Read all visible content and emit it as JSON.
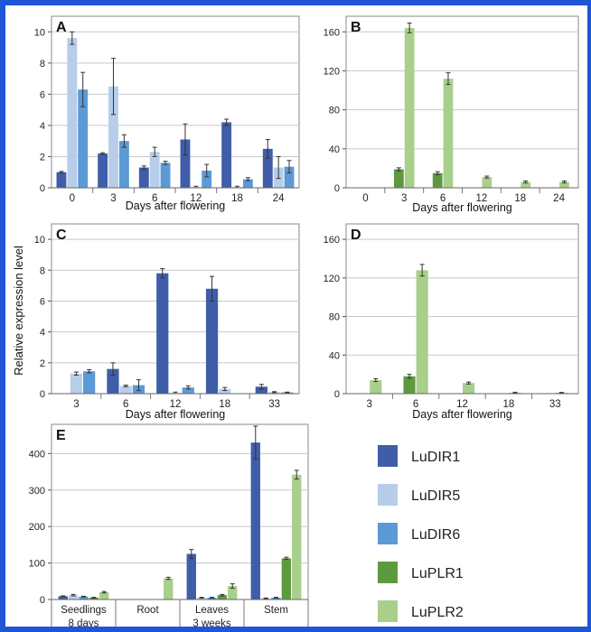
{
  "figure": {
    "ylabel_shared": "Relative expression level",
    "colors": {
      "LuDIR1": "#3f5da8",
      "LuDIR5": "#b7cde9",
      "LuDIR6": "#5b9ad6",
      "LuPLR1": "#5d9a3f",
      "LuPLR2": "#a9cf8c"
    }
  },
  "legend": {
    "items": [
      {
        "name": "LuDIR1",
        "color": "#3f5da8"
      },
      {
        "name": "LuDIR5",
        "color": "#b7cde9"
      },
      {
        "name": "LuDIR6",
        "color": "#5b9ad6"
      },
      {
        "name": "LuPLR1",
        "color": "#5d9a3f"
      },
      {
        "name": "LuPLR2",
        "color": "#a9cf8c"
      }
    ]
  },
  "chart_data": [
    {
      "panel": "A",
      "type": "bar",
      "xlabel": "Days after flowering",
      "categories": [
        "0",
        "3",
        "6",
        "12",
        "18",
        "24"
      ],
      "ylim": [
        0,
        11
      ],
      "yticks": [
        0,
        2,
        4,
        6,
        8,
        10
      ],
      "grid": true,
      "series": [
        {
          "name": "LuDIR1",
          "values": [
            1.0,
            2.2,
            1.3,
            3.1,
            4.2,
            2.5
          ],
          "err": [
            0.05,
            0.05,
            0.1,
            1.0,
            0.2,
            0.6
          ]
        },
        {
          "name": "LuDIR5",
          "values": [
            9.6,
            6.5,
            2.3,
            0.05,
            0.05,
            1.3
          ],
          "err": [
            0.4,
            1.8,
            0.3,
            0.05,
            0.05,
            0.7
          ]
        },
        {
          "name": "LuDIR6",
          "values": [
            6.3,
            3.0,
            1.6,
            1.1,
            0.55,
            1.35
          ],
          "err": [
            1.1,
            0.4,
            0.1,
            0.4,
            0.1,
            0.4
          ]
        }
      ]
    },
    {
      "panel": "B",
      "type": "bar",
      "xlabel": "Days after flowering",
      "categories": [
        "0",
        "3",
        "6",
        "12",
        "18",
        "24"
      ],
      "ylim": [
        0,
        176
      ],
      "yticks": [
        0,
        40,
        80,
        120,
        160
      ],
      "grid": true,
      "series": [
        {
          "name": "LuPLR1",
          "values": [
            0,
            19,
            15,
            0,
            0,
            0
          ],
          "err": [
            0,
            1.5,
            1.5,
            0,
            0,
            0
          ]
        },
        {
          "name": "LuPLR2",
          "values": [
            0,
            164,
            112,
            11,
            6,
            6
          ],
          "err": [
            0,
            5,
            6,
            1,
            1,
            1
          ]
        }
      ]
    },
    {
      "panel": "C",
      "type": "bar",
      "xlabel": "Days after flowering",
      "categories": [
        "3",
        "6",
        "12",
        "18",
        "33"
      ],
      "ylim": [
        0,
        11
      ],
      "yticks": [
        0,
        2,
        4,
        6,
        8,
        10
      ],
      "grid": true,
      "series": [
        {
          "name": "LuDIR1",
          "values": [
            0,
            1.6,
            7.8,
            6.8,
            0.45
          ],
          "err": [
            0,
            0.4,
            0.3,
            0.8,
            0.15
          ]
        },
        {
          "name": "LuDIR5",
          "values": [
            1.3,
            0.5,
            0.05,
            0.3,
            0.1
          ],
          "err": [
            0.1,
            0.05,
            0.05,
            0.1,
            0.03
          ]
        },
        {
          "name": "LuDIR6",
          "values": [
            1.45,
            0.55,
            0.4,
            0.0,
            0.08
          ],
          "err": [
            0.1,
            0.35,
            0.1,
            0,
            0.02
          ]
        }
      ]
    },
    {
      "panel": "D",
      "type": "bar",
      "xlabel": "Days after flowering",
      "categories": [
        "3",
        "6",
        "12",
        "18",
        "33"
      ],
      "ylim": [
        0,
        176
      ],
      "yticks": [
        0,
        40,
        80,
        120,
        160
      ],
      "grid": true,
      "series": [
        {
          "name": "LuPLR1",
          "values": [
            0,
            18,
            0,
            0,
            0
          ],
          "err": [
            0,
            2,
            0,
            0,
            0
          ]
        },
        {
          "name": "LuPLR2",
          "values": [
            14,
            128,
            11,
            1,
            1
          ],
          "err": [
            1.5,
            6,
            1,
            0.5,
            0.3
          ]
        }
      ]
    },
    {
      "panel": "E",
      "type": "bar",
      "categories": [
        "Seedlings",
        "Root",
        "Leaves",
        "Stem"
      ],
      "category_sublabels": [
        "8 days",
        "3 weeks"
      ],
      "ylim": [
        0,
        480
      ],
      "yticks": [
        0,
        100,
        200,
        300,
        400
      ],
      "grid": true,
      "series": [
        {
          "name": "LuDIR1",
          "values": [
            9,
            0,
            125,
            430
          ],
          "err": [
            1,
            0,
            12,
            45
          ]
        },
        {
          "name": "LuDIR5",
          "values": [
            12,
            0,
            5,
            3
          ],
          "err": [
            2,
            0,
            1,
            1
          ]
        },
        {
          "name": "LuDIR6",
          "values": [
            8,
            0,
            5,
            5
          ],
          "err": [
            1,
            0,
            1,
            1
          ]
        },
        {
          "name": "LuPLR1",
          "values": [
            5,
            0,
            12,
            113
          ],
          "err": [
            1,
            0,
            2,
            3
          ]
        },
        {
          "name": "LuPLR2",
          "values": [
            20,
            58,
            37,
            342
          ],
          "err": [
            2,
            3,
            6,
            12
          ]
        }
      ]
    }
  ]
}
